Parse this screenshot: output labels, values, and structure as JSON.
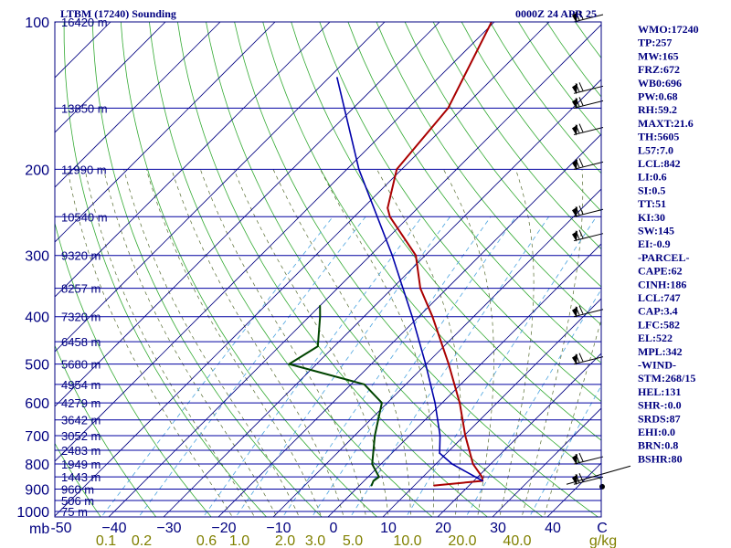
{
  "header": {
    "station": "LTBM (17240) Sounding",
    "time": "0000Z 24 APR 25"
  },
  "indices": [
    "WMO:17240",
    "TP:257",
    "MW:165",
    "FRZ:672",
    "WB0:696",
    "PW:0.68",
    "RH:59.2",
    "MAXT:21.6",
    "TH:5605",
    "L57:7.0",
    "LCL:842",
    "LI:0.6",
    "SI:0.5",
    "TT:51",
    "KI:30",
    "SW:145",
    "EI:-0.9",
    "-PARCEL-",
    "CAPE:62",
    "CINH:186",
    "LCL:747",
    "CAP:3.4",
    "LFC:582",
    "EL:522",
    "MPL:342",
    "-WIND-",
    "STM:268/15",
    "HEL:131",
    "SHR-:0.0",
    "SRDS:87",
    "EHI:0.0",
    "BRN:0.8",
    "BSHR:80"
  ],
  "colors": {
    "axis": "#000080",
    "isobar": "#0000a0",
    "isotherm": "#000080",
    "dry_adiabat": "#33aa33",
    "moist_adiabat": "#556b2f",
    "mixing_ratio": "#4aa3df",
    "temperature": "#aa0000",
    "dewpoint": "#004400",
    "parcel": "#0000aa",
    "mixing_label": "#808000"
  },
  "chart_data": {
    "type": "line",
    "diagram": "skew-T log-P",
    "ylim_hpa": [
      1000,
      100
    ],
    "xlim_c": [
      -50,
      50
    ],
    "pressure_labels": [
      {
        "p": 100,
        "label": "100"
      },
      {
        "p": 200,
        "label": "200"
      },
      {
        "p": 300,
        "label": "300"
      },
      {
        "p": 400,
        "label": "400"
      },
      {
        "p": 500,
        "label": "500"
      },
      {
        "p": 600,
        "label": "600"
      },
      {
        "p": 700,
        "label": "700"
      },
      {
        "p": 800,
        "label": "800"
      },
      {
        "p": 900,
        "label": "900"
      },
      {
        "p": 1000,
        "label": "1000"
      }
    ],
    "pressure_unit": "mb",
    "height_levels": [
      {
        "p": 100,
        "label": "16420 m"
      },
      {
        "p": 150,
        "label": "13850 m"
      },
      {
        "p": 200,
        "label": "11990 m"
      },
      {
        "p": 250,
        "label": "10540 m"
      },
      {
        "p": 300,
        "label": "9320 m"
      },
      {
        "p": 350,
        "label": "8257 m"
      },
      {
        "p": 400,
        "label": "7320 m"
      },
      {
        "p": 450,
        "label": "6458 m"
      },
      {
        "p": 500,
        "label": "5680 m"
      },
      {
        "p": 550,
        "label": "4954 m"
      },
      {
        "p": 600,
        "label": "4279 m"
      },
      {
        "p": 650,
        "label": "3642 m"
      },
      {
        "p": 700,
        "label": "3052 m"
      },
      {
        "p": 750,
        "label": "2483 m"
      },
      {
        "p": 800,
        "label": "1949 m"
      },
      {
        "p": 850,
        "label": "1443 m"
      },
      {
        "p": 900,
        "label": "960 m"
      },
      {
        "p": 950,
        "label": "506 m"
      },
      {
        "p": 1000,
        "label": "75 m"
      }
    ],
    "temperature_ticks": [
      {
        "t": -50,
        "label": "-50"
      },
      {
        "t": -40,
        "label": "−40"
      },
      {
        "t": -30,
        "label": "−30"
      },
      {
        "t": -20,
        "label": "−20"
      },
      {
        "t": -10,
        "label": "−10"
      },
      {
        "t": 0,
        "label": "0"
      },
      {
        "t": 10,
        "label": "10"
      },
      {
        "t": 20,
        "label": "20"
      },
      {
        "t": 30,
        "label": "30"
      },
      {
        "t": 40,
        "label": "40"
      },
      {
        "t": 50,
        "label": "C"
      }
    ],
    "mixing_ratio_labels": [
      "0.1",
      "0.2",
      "0.6",
      "1.0",
      "2.0",
      "3.0",
      "5.0",
      "10.0",
      "20.0",
      "40.0",
      "g/kg"
    ],
    "mixing_ratio_values": [
      0.1,
      0.2,
      0.6,
      1.0,
      2.0,
      3.0,
      5.0,
      10.0,
      20.0,
      40.0
    ],
    "series": [
      {
        "name": "temperature",
        "points": [
          {
            "p": 885,
            "t": 13.6
          },
          {
            "p": 866,
            "t": 21.6
          },
          {
            "p": 850,
            "t": 20.8
          },
          {
            "p": 800,
            "t": 16.8
          },
          {
            "p": 700,
            "t": 10.2
          },
          {
            "p": 600,
            "t": 3.2
          },
          {
            "p": 500,
            "t": -5.9
          },
          {
            "p": 400,
            "t": -17.5
          },
          {
            "p": 350,
            "t": -24.9
          },
          {
            "p": 300,
            "t": -31.7
          },
          {
            "p": 250,
            "t": -43.5
          },
          {
            "p": 240,
            "t": -45.5
          },
          {
            "p": 200,
            "t": -50.9
          },
          {
            "p": 150,
            "t": -52.7
          },
          {
            "p": 100,
            "t": -60.5
          }
        ]
      },
      {
        "name": "dewpoint",
        "points": [
          {
            "p": 885,
            "t": 2.2
          },
          {
            "p": 866,
            "t": 1.7
          },
          {
            "p": 850,
            "t": 2.0
          },
          {
            "p": 800,
            "t": -1.6
          },
          {
            "p": 700,
            "t": -6.3
          },
          {
            "p": 600,
            "t": -11.0
          },
          {
            "p": 550,
            "t": -17.6
          },
          {
            "p": 500,
            "t": -35.0
          },
          {
            "p": 460,
            "t": -33.0
          },
          {
            "p": 400,
            "t": -38.0
          },
          {
            "p": 380,
            "t": -40.0
          }
        ]
      },
      {
        "name": "parcel",
        "points": [
          {
            "p": 866,
            "t": 21.6
          },
          {
            "p": 800,
            "t": 13.0
          },
          {
            "p": 760,
            "t": 8.7
          },
          {
            "p": 700,
            "t": 5.6
          },
          {
            "p": 600,
            "t": -1.3
          },
          {
            "p": 500,
            "t": -10.1
          },
          {
            "p": 400,
            "t": -21.2
          },
          {
            "p": 300,
            "t": -36.0
          },
          {
            "p": 200,
            "t": -57.8
          },
          {
            "p": 130,
            "t": -78.5
          }
        ]
      }
    ],
    "wind_barbs": [
      {
        "p": 880,
        "dir": "",
        "spd": 0
      },
      {
        "p": 800,
        "dir": "",
        "spd": 0
      },
      {
        "p": 500,
        "dir": "",
        "spd": 0
      },
      {
        "p": 400,
        "dir": "",
        "spd": 0
      },
      {
        "p": 280,
        "dir": "",
        "spd": 0
      },
      {
        "p": 250,
        "dir": "",
        "spd": 0
      },
      {
        "p": 200,
        "dir": "",
        "spd": 0
      },
      {
        "p": 170,
        "dir": "",
        "spd": 0
      },
      {
        "p": 150,
        "dir": "",
        "spd": 0
      },
      {
        "p": 140,
        "dir": "",
        "spd": 0
      },
      {
        "p": 100,
        "dir": "",
        "spd": 0
      }
    ]
  }
}
